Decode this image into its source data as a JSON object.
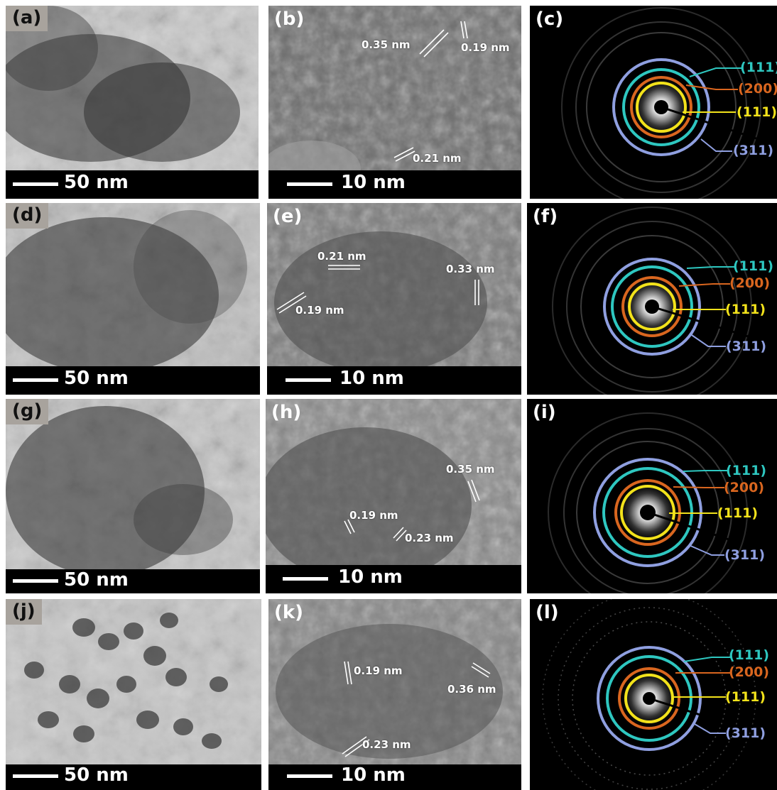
{
  "panels": {
    "a": {
      "label": "(a)",
      "scale": "50 nm"
    },
    "b": {
      "label": "(b)",
      "scale": "10 nm",
      "spacings": [
        "0.35  nm",
        "0.19  nm",
        "0.21  nm"
      ]
    },
    "c": {
      "label": "(c)",
      "rings": [
        "(111)",
        "(200)",
        "(111)",
        "(311)"
      ]
    },
    "d": {
      "label": "(d)",
      "scale": "50 nm"
    },
    "e": {
      "label": "(e)",
      "scale": "10 nm",
      "spacings": [
        "0.21 nm",
        "0.33  nm",
        "0.19  nm"
      ]
    },
    "f": {
      "label": "(f)",
      "rings": [
        "(111)",
        "(200)",
        "(111)",
        "(311)"
      ]
    },
    "g": {
      "label": "(g)",
      "scale": "50 nm"
    },
    "h": {
      "label": "(h)",
      "scale": "10 nm",
      "spacings": [
        "0.35  nm",
        "0.19  nm",
        "0.23  nm"
      ]
    },
    "i": {
      "label": "(i)",
      "rings": [
        "(111)",
        "(200)",
        "(111)",
        "(311)"
      ]
    },
    "j": {
      "label": "(j)",
      "scale": "50 nm"
    },
    "k": {
      "label": "(k)",
      "scale": "10 nm",
      "spacings": [
        "0.19  nm",
        "0.36  nm",
        "0.23  nm"
      ]
    },
    "l": {
      "label": "(l)",
      "rings": [
        "(111)",
        "(200)",
        "(111)",
        "(311)"
      ]
    }
  },
  "colors": {
    "ring_outer": "#8f9fe0",
    "ring_teal": "#2ec7c0",
    "ring_orange": "#d9661f",
    "ring_yellow": "#f2e21b",
    "label_311": "#8f9fe0"
  }
}
